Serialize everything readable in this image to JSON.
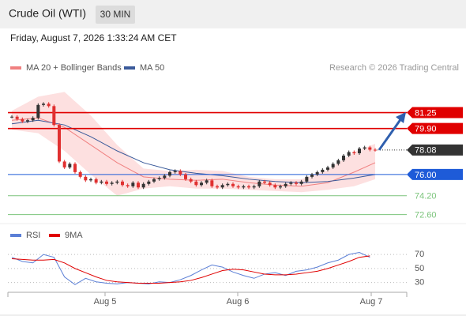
{
  "header": {
    "title": "Crude Oil (WTI)",
    "timeframe": "30 MIN",
    "timestamp": "Friday, August 7, 2026 1:33:24 AM CET"
  },
  "chart_data": [
    {
      "type": "candlestick",
      "credit": "Research © 2026 Trading Central",
      "xlim": [
        0,
        69
      ],
      "ylim": [
        71.7,
        84.1
      ],
      "close": [
        80.9,
        80.7,
        80.5,
        80.6,
        80.8,
        81.9,
        82.0,
        81.8,
        80.2,
        77.1,
        76.6,
        76.9,
        76.2,
        75.8,
        75.5,
        75.6,
        75.3,
        75.4,
        75.2,
        75.3,
        75.4,
        75.1,
        75.0,
        75.3,
        74.9,
        75.2,
        75.4,
        75.6,
        75.7,
        75.9,
        76.2,
        76.3,
        76.0,
        75.6,
        75.4,
        75.1,
        75.3,
        75.5,
        75.0,
        74.9,
        75.1,
        75.2,
        75.0,
        74.9,
        75.0,
        74.9,
        75.0,
        75.4,
        75.3,
        75.1,
        74.9,
        75.0,
        75.2,
        75.3,
        75.2,
        75.4,
        75.8,
        76.0,
        76.2,
        76.4,
        76.6,
        76.9,
        77.2,
        77.6,
        77.9,
        77.8,
        78.2,
        78.3,
        78.1,
        78.08
      ],
      "up_color": "#333333",
      "down_color": "#e03030",
      "last": 78.08,
      "series": [
        {
          "name": "MA 20 + Bollinger Bands",
          "color": "#f08080",
          "band_color": "#fde0e0",
          "x": [
            0,
            5,
            10,
            15,
            20,
            25,
            30,
            35,
            40,
            45,
            50,
            55,
            60,
            65,
            69
          ],
          "values": [
            80.6,
            80.8,
            80.0,
            78.5,
            77.0,
            75.8,
            75.6,
            75.5,
            75.6,
            75.3,
            75.1,
            75.0,
            75.3,
            76.2,
            77.0
          ],
          "upper": [
            81.4,
            82.6,
            83.0,
            81.0,
            78.5,
            76.5,
            76.3,
            76.4,
            76.3,
            75.8,
            75.6,
            75.6,
            76.4,
            77.9,
            78.6
          ],
          "lower": [
            79.8,
            79.5,
            78.0,
            76.0,
            74.2,
            74.8,
            75.0,
            74.8,
            74.8,
            74.7,
            74.6,
            74.5,
            74.7,
            75.0,
            75.6
          ]
        },
        {
          "name": "MA 50",
          "color": "#3a5a9a",
          "x": [
            0,
            5,
            10,
            15,
            20,
            25,
            30,
            35,
            40,
            45,
            50,
            55,
            60,
            65,
            69
          ],
          "values": [
            80.3,
            80.6,
            80.2,
            79.2,
            78.0,
            77.0,
            76.4,
            76.1,
            75.9,
            75.6,
            75.4,
            75.3,
            75.4,
            75.7,
            76.0
          ]
        }
      ],
      "levels": [
        {
          "value": 81.25,
          "color": "#e00000",
          "boxed": true
        },
        {
          "value": {
            "value": 79.9,
            "label": "79.90"
          },
          "color": "#e00000",
          "boxed": true
        },
        {
          "value": {
            "value": 76,
            "label": "76.00"
          },
          "color": "#1e5bd8",
          "boxed": true
        },
        {
          "value": {
            "value": 74.2,
            "label": "74.20"
          },
          "color": "#7bc47b",
          "boxed": false
        },
        {
          "value": {
            "value": 72.6,
            "label": "72.60"
          },
          "color": "#7bc47b",
          "boxed": false
        }
      ]
    },
    {
      "type": "line",
      "xlim": [
        0,
        69
      ],
      "ylim": [
        16,
        95
      ],
      "yticks": [
        70,
        50,
        30
      ],
      "xticks": [
        {
          "value": 17.7,
          "label": "Aug 5"
        },
        {
          "value": 42.9,
          "label": "Aug 6"
        },
        {
          "value": 68.25,
          "label": "Aug 7"
        }
      ],
      "x": [
        0,
        2,
        4,
        6,
        8,
        10,
        12,
        14,
        16,
        18,
        20,
        22,
        24,
        26,
        28,
        30,
        32,
        34,
        36,
        38,
        40,
        42,
        44,
        46,
        48,
        50,
        52,
        54,
        56,
        58,
        60,
        62,
        64,
        66,
        68
      ],
      "series": [
        {
          "name": "RSI",
          "color": "#5b7fd6",
          "values": [
            66,
            60,
            58,
            70,
            66,
            38,
            27,
            36,
            31,
            29,
            28,
            30,
            29,
            28,
            31,
            30,
            34,
            40,
            48,
            55,
            52,
            45,
            40,
            36,
            42,
            44,
            40,
            46,
            48,
            52,
            58,
            62,
            70,
            73,
            66
          ]
        },
        {
          "name": "9MA",
          "color": "#e00000",
          "values": [
            64,
            63,
            62,
            62,
            63,
            58,
            50,
            44,
            38,
            33,
            31,
            30,
            29,
            29,
            29,
            30,
            31,
            33,
            37,
            42,
            47,
            49,
            48,
            45,
            42,
            41,
            41,
            42,
            44,
            46,
            50,
            55,
            60,
            66,
            68
          ]
        }
      ]
    }
  ]
}
